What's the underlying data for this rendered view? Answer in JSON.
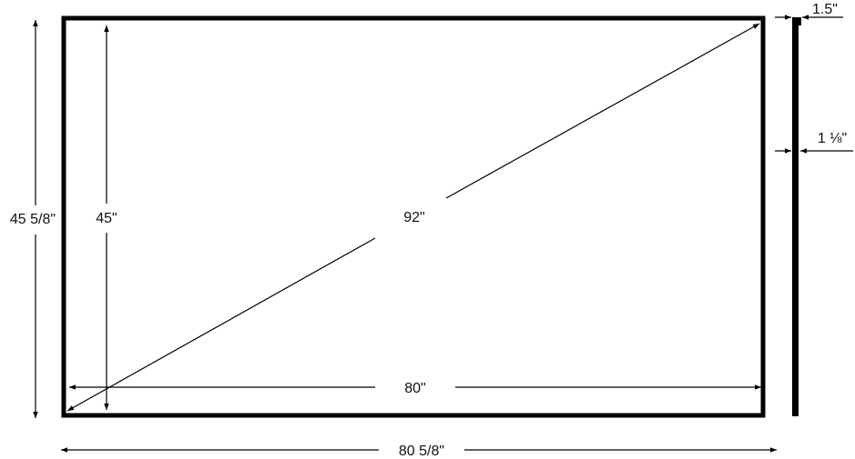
{
  "diagram": {
    "labels": {
      "outer_height": "45 5/8\"",
      "screen_height": "45\"",
      "diagonal": "92\"",
      "screen_width": "80\"",
      "outer_width": "80 5/8\"",
      "frame_top_depth": "1.5\"",
      "frame_depth": "1 ⅛\""
    },
    "colors": {
      "line": "#000000",
      "background": "#ffffff"
    }
  }
}
